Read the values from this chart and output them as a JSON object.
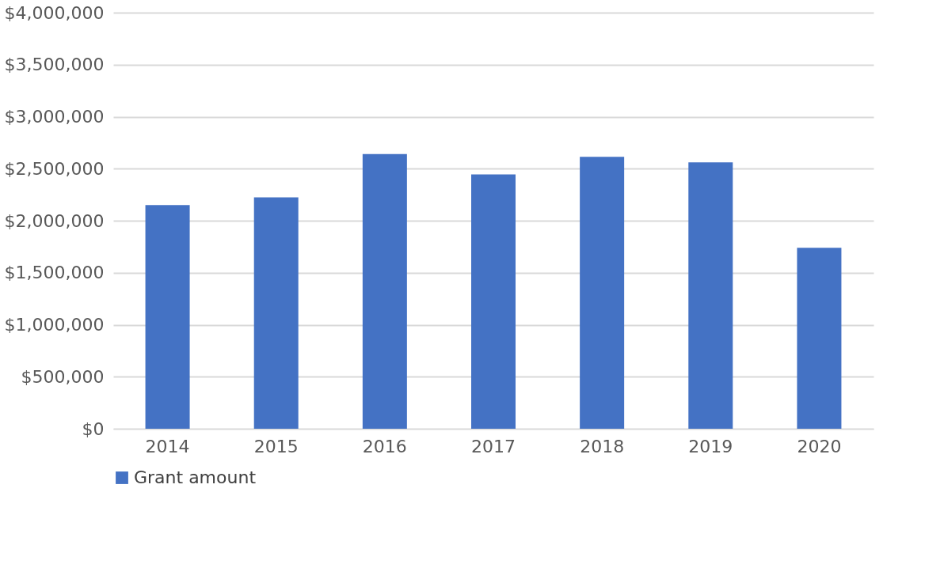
{
  "chart_data": {
    "type": "bar",
    "categories": [
      "2014",
      "2015",
      "2016",
      "2017",
      "2018",
      "2019",
      "2020"
    ],
    "series": [
      {
        "name": "Grant amount",
        "color": "#4472c4",
        "values": [
          2150000,
          2225000,
          2640000,
          2445000,
          2615000,
          2560000,
          1740000
        ]
      }
    ],
    "ylim": [
      0,
      4000000
    ],
    "yticks": [
      {
        "value": 0,
        "label": "$0"
      },
      {
        "value": 500000,
        "label": "$500,000"
      },
      {
        "value": 1000000,
        "label": "$1,000,000"
      },
      {
        "value": 1500000,
        "label": "$1,500,000"
      },
      {
        "value": 2000000,
        "label": "$2,000,000"
      },
      {
        "value": 2500000,
        "label": "$2,500,000"
      },
      {
        "value": 3000000,
        "label": "$3,000,000"
      },
      {
        "value": 3500000,
        "label": "$3,500,000"
      },
      {
        "value": 4000000,
        "label": "$4,000,000"
      }
    ],
    "grid": "y",
    "legend": "bottom"
  }
}
